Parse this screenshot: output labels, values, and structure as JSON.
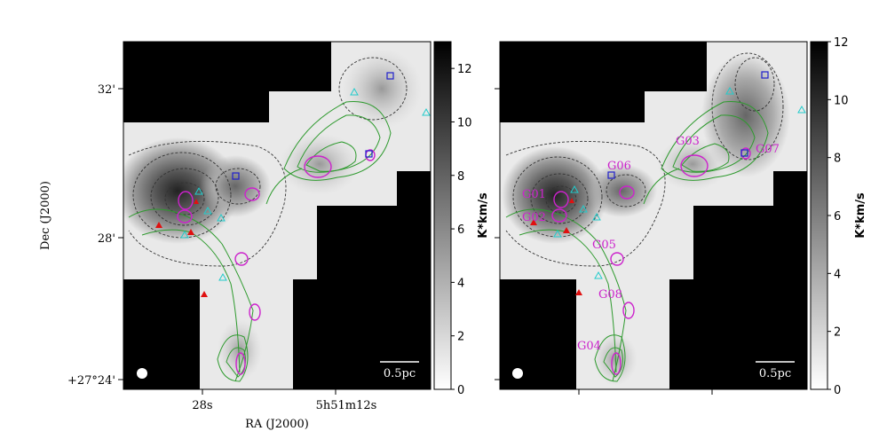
{
  "figure": {
    "ylabel": "Dec (J2000)",
    "xlabel": "RA (J2000)",
    "colors": {
      "masked": "#000000",
      "contour_green": "#2e9a2e",
      "contour_black": "#333333",
      "ellipse": "#cc22cc",
      "triangle_red": "#e01010",
      "triangle_cyan": "#22cccc",
      "square_blue": "#2020cc"
    },
    "panels": [
      {
        "id": "left",
        "ytick_labels": [
          "32'",
          "28'",
          "+27°24'"
        ],
        "xtick_labels": [
          "28s",
          "5h51m12s"
        ],
        "scalebar": "0.5pc",
        "colorbar": {
          "label": "K*km/s",
          "range": [
            0,
            13
          ],
          "ticks": [
            "0",
            "2",
            "4",
            "6",
            "8",
            "10",
            "12"
          ]
        },
        "labels": []
      },
      {
        "id": "right",
        "ytick_labels": [],
        "xtick_labels": [],
        "scalebar": "0.5pc",
        "colorbar": {
          "label": "K*km/s",
          "range": [
            0,
            12
          ],
          "ticks": [
            "0",
            "2",
            "4",
            "6",
            "8",
            "10",
            "12"
          ]
        },
        "labels": [
          "G01",
          "G02",
          "G03",
          "G04",
          "G05",
          "G06",
          "G07",
          "G08"
        ]
      }
    ]
  },
  "chart_data": [
    {
      "type": "heatmap",
      "panel": "left",
      "xlabel": "RA (J2000)",
      "ylabel": "Dec (J2000)",
      "x_ticks": [
        "28s",
        "5h51m12s"
      ],
      "y_ticks": [
        "32'",
        "28'",
        "+27°24'"
      ],
      "colorbar": {
        "label": "K*km/s",
        "min": 0,
        "max": 13,
        "ticks": [
          0,
          2,
          4,
          6,
          8,
          10,
          12
        ],
        "cmap": "gray_r"
      },
      "scalebar": "0.5pc"
    },
    {
      "type": "heatmap",
      "panel": "right",
      "colorbar": {
        "label": "K*km/s",
        "min": 0,
        "max": 12,
        "ticks": [
          0,
          2,
          4,
          6,
          8,
          10,
          12
        ],
        "cmap": "gray_r"
      },
      "scalebar": "0.5pc",
      "clump_labels": [
        "G01",
        "G02",
        "G03",
        "G04",
        "G05",
        "G06",
        "G07",
        "G08"
      ]
    }
  ]
}
